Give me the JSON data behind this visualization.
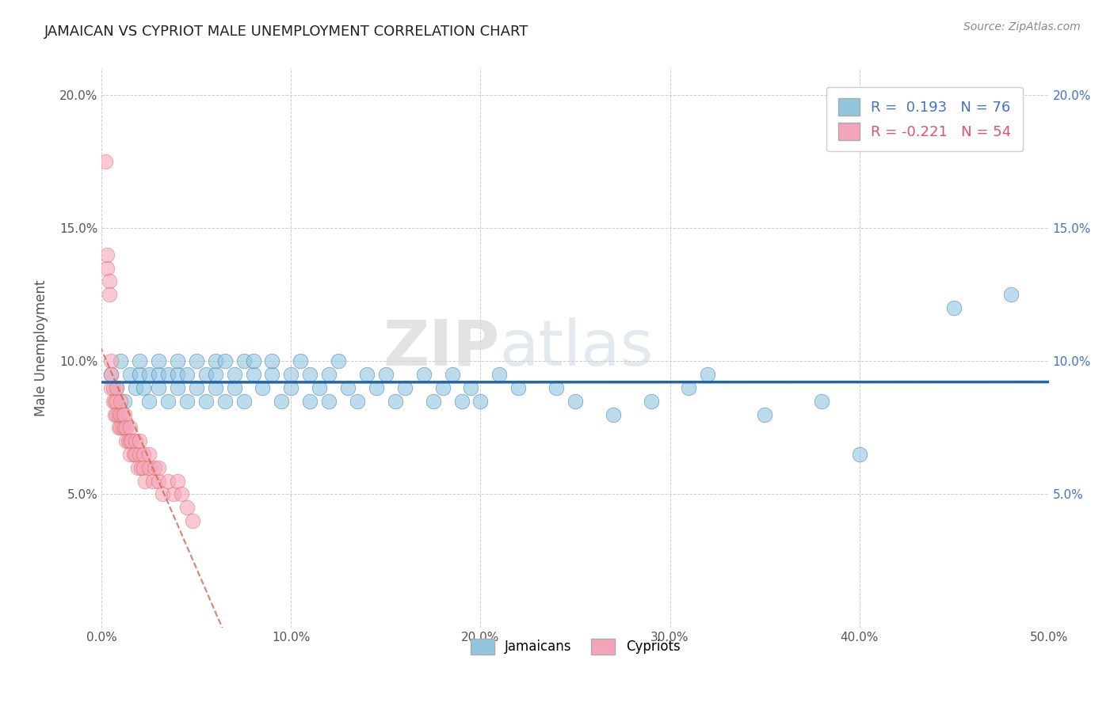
{
  "title": "JAMAICAN VS CYPRIOT MALE UNEMPLOYMENT CORRELATION CHART",
  "source": "Source: ZipAtlas.com",
  "ylabel": "Male Unemployment",
  "xlim": [
    0.0,
    0.5
  ],
  "ylim": [
    0.0,
    0.21
  ],
  "xticks": [
    0.0,
    0.1,
    0.2,
    0.3,
    0.4,
    0.5
  ],
  "xticklabels": [
    "0.0%",
    "10.0%",
    "20.0%",
    "30.0%",
    "40.0%",
    "50.0%"
  ],
  "yticks_left": [
    0.05,
    0.1,
    0.15,
    0.2
  ],
  "yticks_right": [
    0.05,
    0.1,
    0.15,
    0.2
  ],
  "yticklabels": [
    "5.0%",
    "10.0%",
    "15.0%",
    "20.0%"
  ],
  "watermark": "ZIPatlas",
  "jamaican_color": "#92c5de",
  "cypriot_color": "#f4a4b8",
  "jamaican_line_color": "#2166ac",
  "cypriot_line_color": "#d6604d",
  "jamaicans_x": [
    0.005,
    0.008,
    0.01,
    0.012,
    0.015,
    0.018,
    0.02,
    0.02,
    0.022,
    0.025,
    0.025,
    0.03,
    0.03,
    0.03,
    0.035,
    0.035,
    0.04,
    0.04,
    0.04,
    0.045,
    0.045,
    0.05,
    0.05,
    0.055,
    0.055,
    0.06,
    0.06,
    0.06,
    0.065,
    0.065,
    0.07,
    0.07,
    0.075,
    0.075,
    0.08,
    0.08,
    0.085,
    0.09,
    0.09,
    0.095,
    0.1,
    0.1,
    0.105,
    0.11,
    0.11,
    0.115,
    0.12,
    0.12,
    0.125,
    0.13,
    0.135,
    0.14,
    0.145,
    0.15,
    0.155,
    0.16,
    0.17,
    0.175,
    0.18,
    0.185,
    0.19,
    0.195,
    0.2,
    0.21,
    0.22,
    0.24,
    0.25,
    0.27,
    0.29,
    0.31,
    0.32,
    0.35,
    0.38,
    0.4,
    0.45,
    0.48
  ],
  "jamaicans_y": [
    0.095,
    0.09,
    0.1,
    0.085,
    0.095,
    0.09,
    0.095,
    0.1,
    0.09,
    0.095,
    0.085,
    0.095,
    0.09,
    0.1,
    0.085,
    0.095,
    0.09,
    0.095,
    0.1,
    0.085,
    0.095,
    0.09,
    0.1,
    0.095,
    0.085,
    0.095,
    0.09,
    0.1,
    0.085,
    0.1,
    0.095,
    0.09,
    0.1,
    0.085,
    0.095,
    0.1,
    0.09,
    0.095,
    0.1,
    0.085,
    0.09,
    0.095,
    0.1,
    0.085,
    0.095,
    0.09,
    0.095,
    0.085,
    0.1,
    0.09,
    0.085,
    0.095,
    0.09,
    0.095,
    0.085,
    0.09,
    0.095,
    0.085,
    0.09,
    0.095,
    0.085,
    0.09,
    0.085,
    0.095,
    0.09,
    0.09,
    0.085,
    0.08,
    0.085,
    0.09,
    0.095,
    0.08,
    0.085,
    0.065,
    0.12,
    0.125
  ],
  "cypriots_x": [
    0.002,
    0.003,
    0.003,
    0.004,
    0.004,
    0.005,
    0.005,
    0.005,
    0.006,
    0.006,
    0.007,
    0.007,
    0.008,
    0.008,
    0.008,
    0.009,
    0.009,
    0.01,
    0.01,
    0.01,
    0.011,
    0.011,
    0.012,
    0.012,
    0.013,
    0.013,
    0.014,
    0.015,
    0.015,
    0.015,
    0.016,
    0.017,
    0.018,
    0.018,
    0.019,
    0.02,
    0.02,
    0.021,
    0.022,
    0.022,
    0.023,
    0.025,
    0.025,
    0.027,
    0.028,
    0.03,
    0.03,
    0.032,
    0.035,
    0.038,
    0.04,
    0.042,
    0.045,
    0.048
  ],
  "cypriots_y": [
    0.175,
    0.135,
    0.14,
    0.13,
    0.125,
    0.09,
    0.1,
    0.095,
    0.09,
    0.085,
    0.085,
    0.08,
    0.085,
    0.09,
    0.08,
    0.075,
    0.08,
    0.075,
    0.08,
    0.085,
    0.075,
    0.08,
    0.075,
    0.08,
    0.07,
    0.075,
    0.07,
    0.075,
    0.07,
    0.065,
    0.07,
    0.065,
    0.07,
    0.065,
    0.06,
    0.065,
    0.07,
    0.06,
    0.065,
    0.06,
    0.055,
    0.06,
    0.065,
    0.055,
    0.06,
    0.055,
    0.06,
    0.05,
    0.055,
    0.05,
    0.055,
    0.05,
    0.045,
    0.04
  ]
}
